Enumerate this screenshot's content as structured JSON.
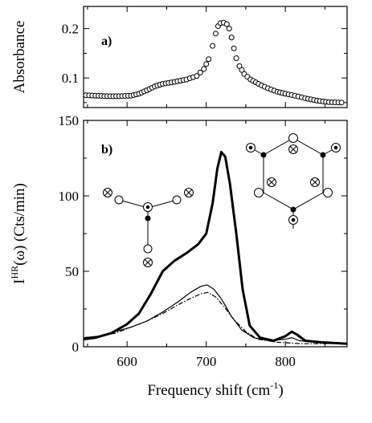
{
  "chart_data": [
    {
      "id": "panel-a",
      "type": "scatter",
      "panel_label": "a)",
      "ylabel": "Absorbance",
      "xlim": [
        545,
        878
      ],
      "ylim": [
        0.04,
        0.245
      ],
      "xticks": [
        600,
        700,
        800
      ],
      "yticks": [
        0.1,
        0.2
      ],
      "ytick_labels": [
        "0.1",
        "0.2"
      ],
      "marker": "open-circle",
      "points": [
        [
          548,
          0.065
        ],
        [
          560,
          0.064
        ],
        [
          575,
          0.063
        ],
        [
          590,
          0.063
        ],
        [
          605,
          0.064
        ],
        [
          615,
          0.068
        ],
        [
          625,
          0.075
        ],
        [
          635,
          0.083
        ],
        [
          645,
          0.088
        ],
        [
          660,
          0.092
        ],
        [
          675,
          0.097
        ],
        [
          688,
          0.104
        ],
        [
          697,
          0.118
        ],
        [
          703,
          0.138
        ],
        [
          708,
          0.165
        ],
        [
          712,
          0.19
        ],
        [
          715,
          0.205
        ],
        [
          718,
          0.211
        ],
        [
          722,
          0.212
        ],
        [
          726,
          0.209
        ],
        [
          729,
          0.2
        ],
        [
          732,
          0.182
        ],
        [
          735,
          0.16
        ],
        [
          738,
          0.14
        ],
        [
          742,
          0.124
        ],
        [
          748,
          0.108
        ],
        [
          756,
          0.097
        ],
        [
          766,
          0.088
        ],
        [
          778,
          0.079
        ],
        [
          790,
          0.072
        ],
        [
          800,
          0.068
        ],
        [
          812,
          0.064
        ],
        [
          825,
          0.059
        ],
        [
          840,
          0.054
        ],
        [
          855,
          0.051
        ],
        [
          875,
          0.05
        ]
      ]
    },
    {
      "id": "panel-b",
      "type": "line",
      "panel_label": "b)",
      "ylabel_main": "I",
      "ylabel_sup": "HR",
      "ylabel_rest": "(ω) (Cts/min)",
      "xlabel_main": "Frequency shift (cm",
      "xlabel_sup": "-1",
      "xlabel_end": ")",
      "xlim": [
        545,
        878
      ],
      "ylim": [
        0,
        150
      ],
      "xticks": [
        600,
        700,
        800
      ],
      "yticks": [
        0,
        50,
        100,
        150
      ],
      "series": [
        {
          "style": "thick",
          "points": [
            [
              545,
              5
            ],
            [
              560,
              6
            ],
            [
              580,
              9
            ],
            [
              600,
              15
            ],
            [
              615,
              22
            ],
            [
              630,
              35
            ],
            [
              645,
              50
            ],
            [
              660,
              57
            ],
            [
              675,
              62
            ],
            [
              690,
              68
            ],
            [
              700,
              75
            ],
            [
              708,
              95
            ],
            [
              714,
              118
            ],
            [
              719,
              129
            ],
            [
              724,
              126
            ],
            [
              730,
              108
            ],
            [
              738,
              75
            ],
            [
              746,
              38
            ],
            [
              755,
              14
            ],
            [
              768,
              6
            ],
            [
              785,
              4
            ],
            [
              800,
              7
            ],
            [
              808,
              10
            ],
            [
              815,
              8
            ],
            [
              825,
              4
            ],
            [
              845,
              3
            ],
            [
              878,
              2
            ]
          ]
        },
        {
          "style": "thin",
          "points": [
            [
              545,
              6
            ],
            [
              565,
              7
            ],
            [
              585,
              10
            ],
            [
              605,
              13
            ],
            [
              625,
              17
            ],
            [
              645,
              23
            ],
            [
              665,
              30
            ],
            [
              680,
              36
            ],
            [
              693,
              40
            ],
            [
              701,
              41
            ],
            [
              710,
              38
            ],
            [
              720,
              31
            ],
            [
              732,
              20
            ],
            [
              745,
              11
            ],
            [
              760,
              6
            ],
            [
              780,
              4
            ],
            [
              800,
              5
            ],
            [
              808,
              6
            ],
            [
              818,
              4
            ],
            [
              840,
              3
            ],
            [
              878,
              2
            ]
          ]
        },
        {
          "style": "dash-dot",
          "points": [
            [
              545,
              6
            ],
            [
              565,
              7
            ],
            [
              585,
              9
            ],
            [
              605,
              13
            ],
            [
              625,
              17
            ],
            [
              645,
              22
            ],
            [
              665,
              28
            ],
            [
              680,
              32
            ],
            [
              693,
              35
            ],
            [
              702,
              36
            ],
            [
              712,
              33
            ],
            [
              722,
              27
            ],
            [
              735,
              18
            ],
            [
              750,
              10
            ],
            [
              765,
              5
            ],
            [
              790,
              3
            ],
            [
              820,
              2
            ],
            [
              850,
              2
            ],
            [
              878,
              2
            ]
          ]
        }
      ]
    }
  ],
  "insets": {
    "molecule_left": "trigonal site diagram",
    "molecule_right": "hexagonal ring diagram"
  },
  "colors": {
    "line": "#000000",
    "frame": "#000000",
    "background": "#ffffff"
  }
}
